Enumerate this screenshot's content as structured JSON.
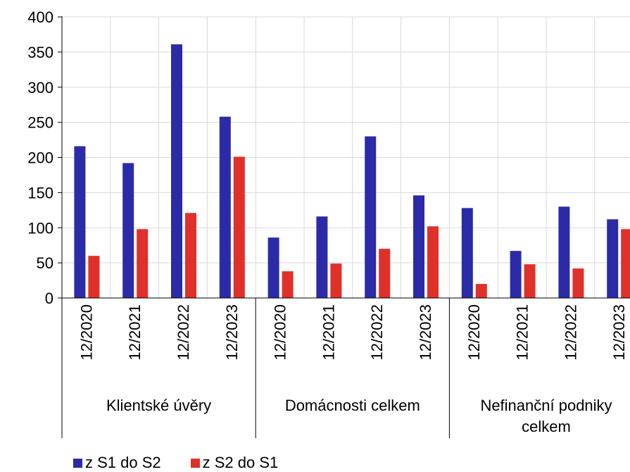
{
  "chart_data": {
    "type": "bar",
    "ylim": [
      0,
      400
    ],
    "yticks": [
      0,
      50,
      100,
      150,
      200,
      250,
      300,
      350,
      400
    ],
    "grid": true,
    "legend_position": "bottom-left",
    "categories": [
      "12/2020",
      "12/2021",
      "12/2022",
      "12/2023",
      "12/2020",
      "12/2021",
      "12/2022",
      "12/2023",
      "12/2020",
      "12/2021",
      "12/2022",
      "12/2023"
    ],
    "groups": [
      {
        "label": "Klientské úvěry",
        "label_lines": [
          "Klientské úvěry"
        ],
        "size": 4
      },
      {
        "label": "Domácnosti celkem",
        "label_lines": [
          "Domácnosti celkem"
        ],
        "size": 4
      },
      {
        "label": "Nefinanční podniky celkem",
        "label_lines": [
          "Nefinanční podniky",
          "celkem"
        ],
        "size": 4
      }
    ],
    "series": [
      {
        "name": "z S1 do S2",
        "color": "#2b2ba8",
        "values": [
          216,
          192,
          361,
          258,
          86,
          116,
          230,
          146,
          128,
          67,
          130,
          112
        ]
      },
      {
        "name": "z S2 do S1",
        "color": "#e0302a",
        "values": [
          60,
          98,
          121,
          201,
          38,
          49,
          70,
          102,
          20,
          48,
          42,
          98
        ]
      }
    ]
  }
}
